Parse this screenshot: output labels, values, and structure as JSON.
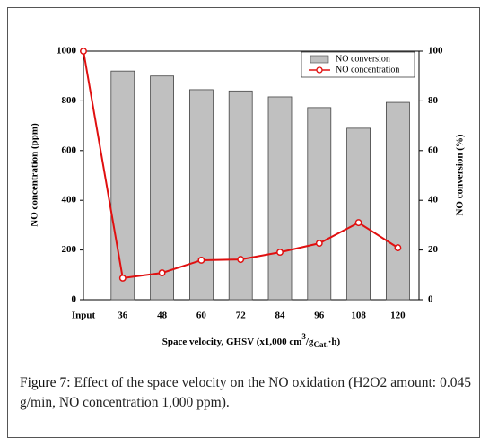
{
  "chart_data": {
    "type": "bar",
    "categories": [
      "Input",
      "36",
      "48",
      "60",
      "72",
      "84",
      "96",
      "108",
      "120"
    ],
    "x_label_parts": [
      "Space velocity, GHSV (x1,000 cm",
      "3",
      "/g",
      "Cat.",
      "·h)"
    ],
    "y_label": "NO concentration (ppm)",
    "y2_label": "NO conversion (%)",
    "ylim": [
      0,
      1000
    ],
    "yticks": [
      0,
      200,
      400,
      600,
      800,
      1000
    ],
    "y2lim": [
      0,
      100
    ],
    "y2ticks": [
      0,
      20,
      40,
      60,
      80,
      100
    ],
    "legend": "upper right",
    "series": [
      {
        "name": "NO conversion",
        "type": "bar",
        "axis": "y2",
        "color": "#c0c0c0",
        "values": [
          null,
          92,
          90,
          84.5,
          84,
          81.6,
          77.3,
          69,
          79.4
        ]
      },
      {
        "name": "NO concentration",
        "type": "line",
        "color": "#e01010",
        "values": [
          1000,
          87,
          108,
          159,
          162,
          191,
          227,
          310,
          209
        ]
      }
    ]
  },
  "caption": {
    "label": "Figure 7:",
    "text": "Effect of the space velocity on the NO oxidation (H2O2 amount: 0.045 g/min, NO concentration 1,000 ppm)."
  }
}
